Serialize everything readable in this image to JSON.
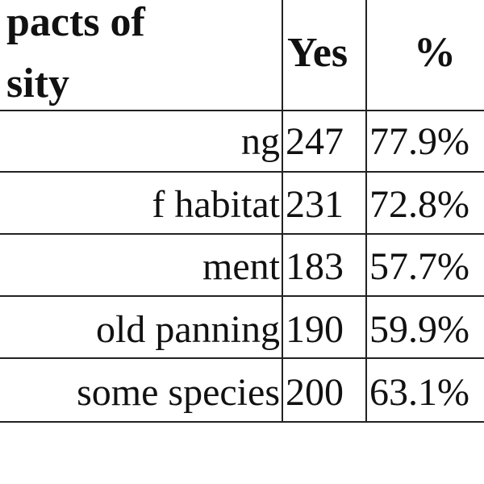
{
  "table": {
    "header": {
      "col1_line1": "pacts of",
      "col1_line2": "sity",
      "col2": "Yes",
      "col3": "%"
    },
    "rows": [
      {
        "label": "ng",
        "yes": "247",
        "pct": "77.9%"
      },
      {
        "label": "f habitat",
        "yes": "231",
        "pct": "72.8%"
      },
      {
        "label": "ment",
        "yes": "183",
        "pct": "57.7%"
      },
      {
        "label": "old panning",
        "yes": "190",
        "pct": "59.9%"
      },
      {
        "label": "some species",
        "yes": "200",
        "pct": "63.1%"
      }
    ]
  }
}
